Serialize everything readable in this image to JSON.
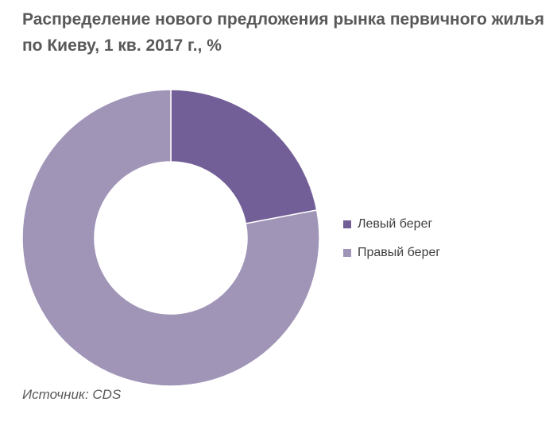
{
  "title": "Распределение нового предложения рынка первичного жилья по Киеву, 1 кв. 2017 г., %",
  "source": "Источник: CDS",
  "chart_data": {
    "type": "pie",
    "variant": "donut",
    "title": "Распределение нового предложения рынка первичного жилья по Киеву, 1 кв. 2017 г., %",
    "categories": [
      "Левый берег",
      "Правый берег"
    ],
    "values": [
      22,
      78
    ],
    "colors": [
      "#725f97",
      "#a095b7"
    ],
    "legend_position": "right",
    "data_labels_shown": false
  }
}
